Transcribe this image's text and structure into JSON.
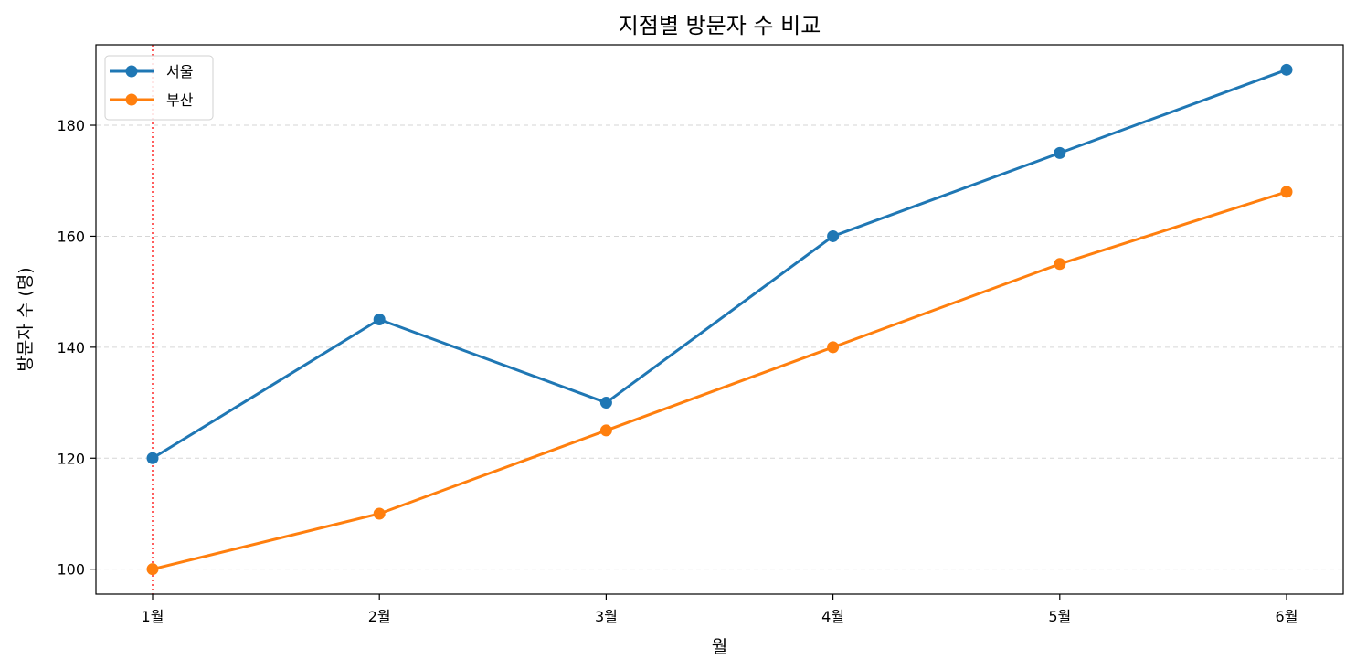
{
  "chart_data": {
    "type": "line",
    "title": "지점별 방문자 수 비교",
    "xlabel": "월",
    "ylabel": "방문자 수 (명)",
    "categories": [
      "1월",
      "2월",
      "3월",
      "4월",
      "5월",
      "6월"
    ],
    "series": [
      {
        "name": "서울",
        "values": [
          120,
          145,
          130,
          160,
          175,
          190
        ],
        "color": "#1f77b4"
      },
      {
        "name": "부산",
        "values": [
          100,
          110,
          125,
          140,
          155,
          168
        ],
        "color": "#ff7f0e"
      }
    ],
    "ylim": [
      95.5,
      194.5
    ],
    "yticks": [
      100,
      120,
      140,
      160,
      180
    ],
    "grid": "y-dashed",
    "legend_position": "top-left",
    "reference_line": {
      "x": "1월",
      "color": "#ff4d4d",
      "style": "dotted"
    }
  }
}
